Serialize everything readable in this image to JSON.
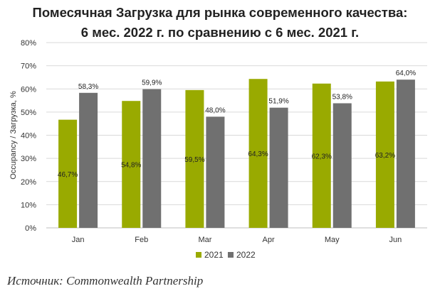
{
  "title": {
    "line1": "Помесячная Загрузка для рынка современного качества:",
    "line2": "6 мес. 2022 г. по сравнению с 6 мес. 2021 г."
  },
  "source": "Источник: Commonwealth Partnership",
  "colors": {
    "2021": "#99aa00",
    "2022": "#707070",
    "grid": "#d9d9d9",
    "axis": "#bfbfbf"
  },
  "chart_data": {
    "type": "bar",
    "title": "Помесячная Загрузка для рынка современного качества: 6 мес. 2022 г. по сравнению с 6 мес. 2021 г.",
    "ylabel": "Occupancy / Загрузка, %",
    "xlabel": "",
    "categories": [
      "Jan",
      "Feb",
      "Mar",
      "Apr",
      "May",
      "Jun"
    ],
    "ylim": [
      0,
      80
    ],
    "yticks": [
      0,
      10,
      20,
      30,
      40,
      50,
      60,
      70,
      80
    ],
    "ytick_labels": [
      "0%",
      "10%",
      "20%",
      "30%",
      "40%",
      "50%",
      "60%",
      "70%",
      "80%"
    ],
    "grid": true,
    "legend": "bottom",
    "series": [
      {
        "name": "2021",
        "values": [
          46.7,
          54.8,
          59.5,
          64.3,
          62.3,
          63.2
        ],
        "labels": [
          "46,7%",
          "54,8%",
          "59,5%",
          "64,3%",
          "62,3%",
          "63,2%"
        ],
        "label_position": "inside-middle"
      },
      {
        "name": "2022",
        "values": [
          58.3,
          59.9,
          48.0,
          51.9,
          53.8,
          64.0
        ],
        "labels": [
          "58,3%",
          "59,9%",
          "48,0%",
          "51,9%",
          "53,8%",
          "64,0%"
        ],
        "label_position": "above"
      }
    ]
  }
}
